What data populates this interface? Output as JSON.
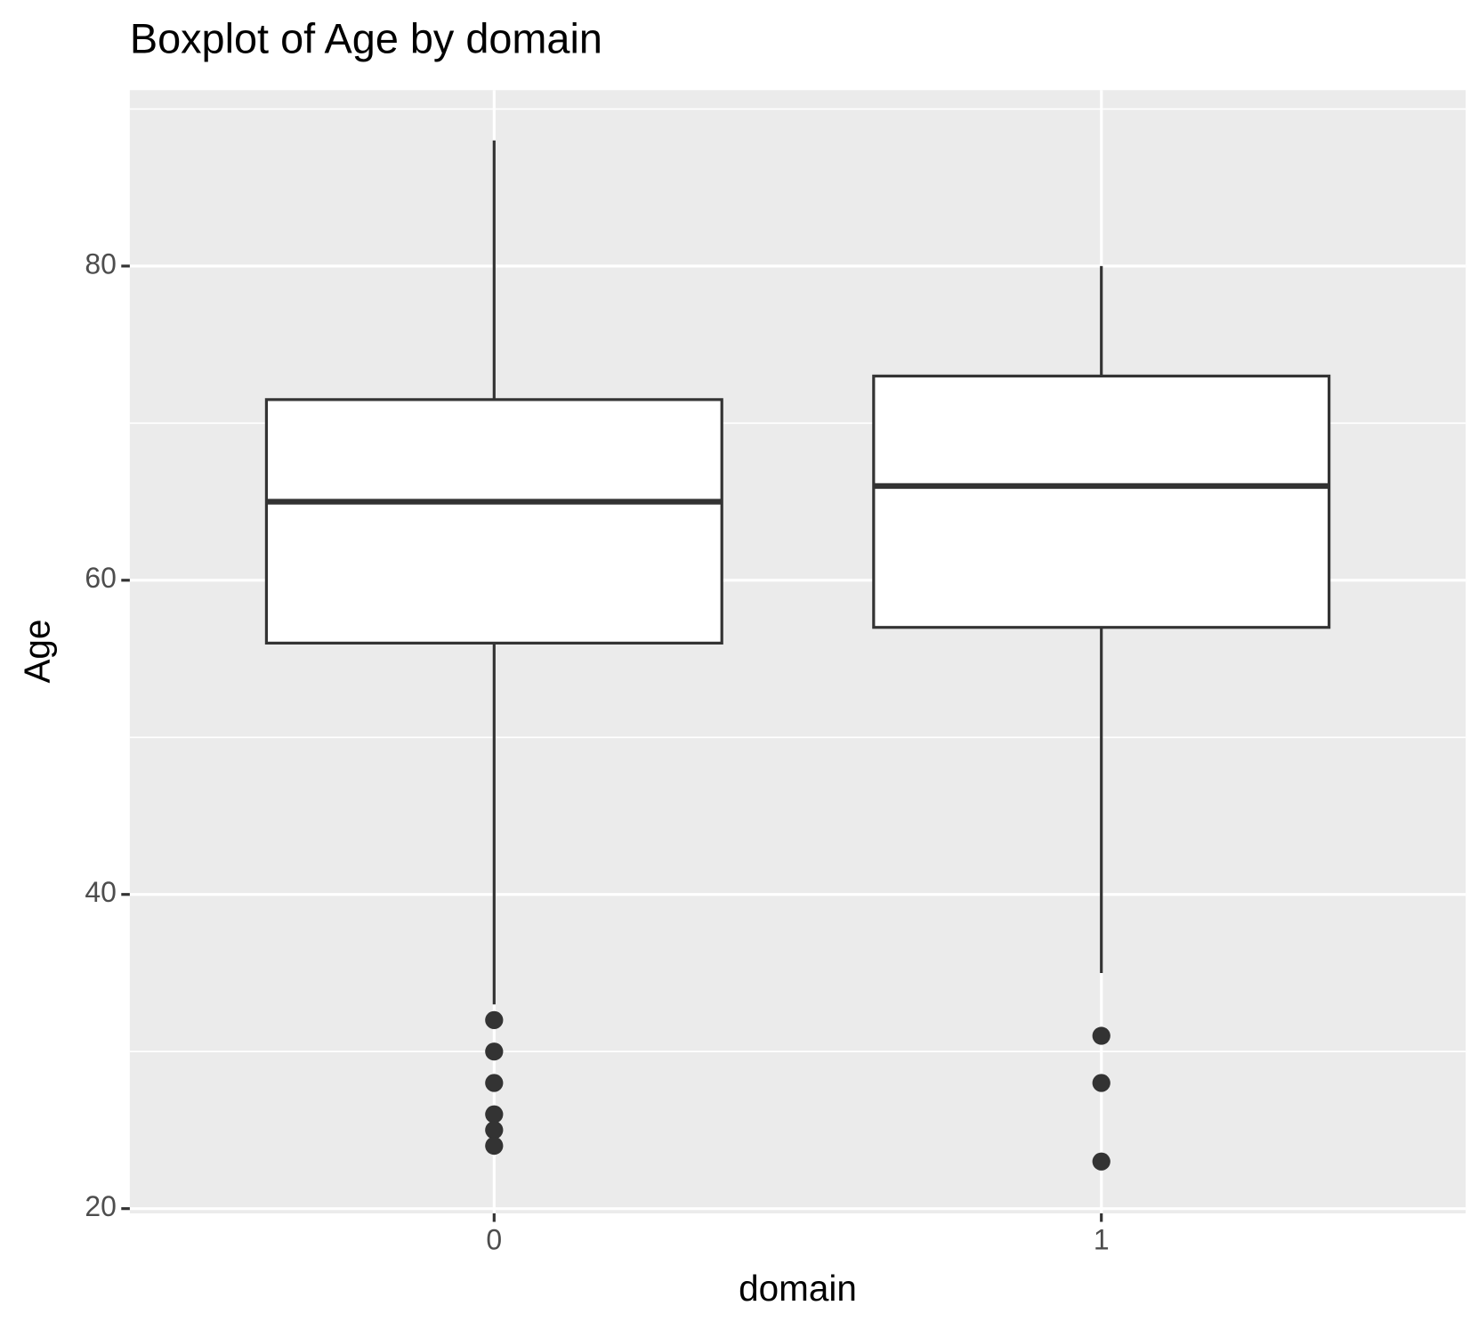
{
  "chart_data": {
    "type": "boxplot",
    "title": "Boxplot of Age by domain",
    "x_label": "domain",
    "y_label": "Age",
    "categories": [
      "0",
      "1"
    ],
    "boxes": [
      {
        "whisker_low": 33,
        "q1": 56,
        "median": 65,
        "q3": 71.5,
        "whisker_high": 88,
        "outliers": [
          32,
          30,
          28,
          26,
          25,
          24
        ]
      },
      {
        "whisker_low": 35,
        "q1": 57,
        "median": 66,
        "q3": 73,
        "whisker_high": 80,
        "outliers": [
          31,
          28,
          23
        ]
      }
    ],
    "ylim": [
      19.7,
      91.2
    ],
    "yticks": [
      20,
      40,
      60,
      80
    ],
    "minor_yticks": [
      30,
      50,
      70,
      90
    ],
    "grid": true,
    "color": "#333333",
    "box_fill": "#ffffff",
    "panel_color": "#ebebeb"
  }
}
